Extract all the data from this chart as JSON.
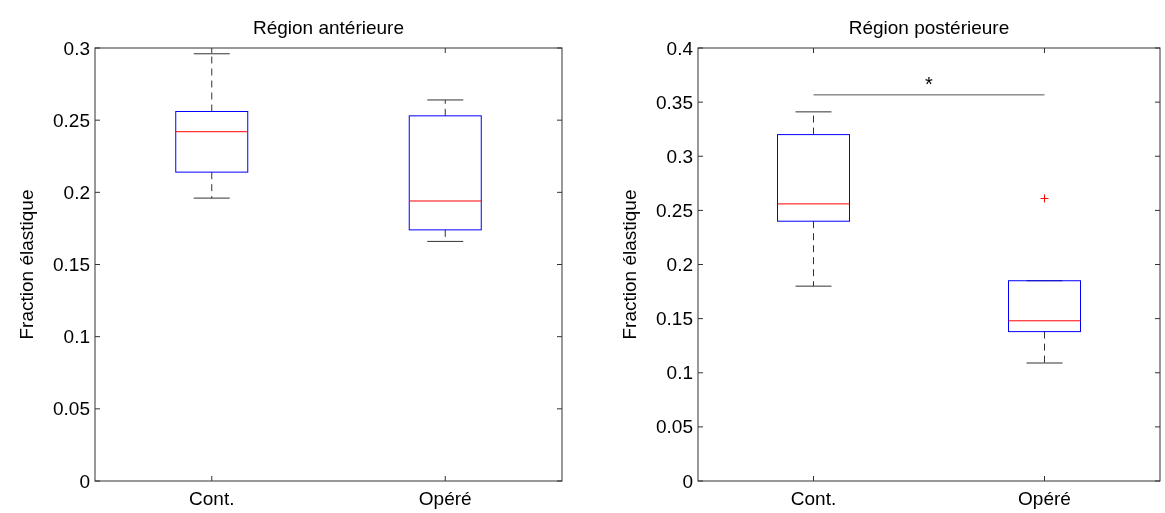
{
  "chart_data": [
    {
      "type": "box",
      "title": "Région antérieure",
      "ylabel": "Fraction élastique",
      "categories": [
        "Cont.",
        "Opéré"
      ],
      "ylim": [
        0,
        0.3
      ],
      "yticks": [
        0,
        0.05,
        0.1,
        0.15,
        0.2,
        0.25,
        0.3
      ],
      "boxes": [
        {
          "low": 0.196,
          "q1": 0.214,
          "median": 0.242,
          "q3": 0.256,
          "high": 0.296
        },
        {
          "low": 0.166,
          "q1": 0.174,
          "median": 0.194,
          "q3": 0.253,
          "high": 0.264
        }
      ]
    },
    {
      "type": "box",
      "title": "Région postérieure",
      "ylabel": "Fraction élastique",
      "categories": [
        "Cont.",
        "Opéré"
      ],
      "ylim": [
        0,
        0.4
      ],
      "yticks": [
        0,
        0.05,
        0.1,
        0.15,
        0.2,
        0.25,
        0.3,
        0.35,
        0.4
      ],
      "annotations": [
        "*"
      ],
      "boxes": [
        {
          "low": 0.18,
          "q1": 0.24,
          "median": 0.256,
          "q3": 0.32,
          "high": 0.341
        },
        {
          "low": 0.109,
          "q1": 0.138,
          "median": 0.148,
          "q3": 0.185,
          "high": 0.185,
          "outliers": [
            0.261
          ]
        }
      ]
    }
  ]
}
